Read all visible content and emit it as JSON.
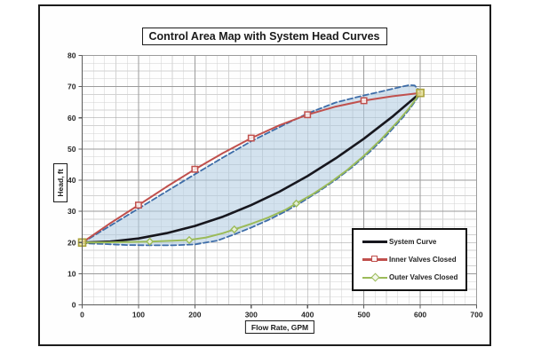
{
  "chart_data": {
    "type": "line",
    "title": "Control Area Map with System Head Curves",
    "xlabel": "Flow Rate, GPM",
    "ylabel": "Head, ft",
    "xlim": [
      0,
      700
    ],
    "ylim": [
      0,
      80
    ],
    "x_major": 100,
    "x_minor": 20,
    "y_major": 10,
    "y_minor": 2.5,
    "x_tick_labels": [
      "0",
      "100",
      "200",
      "300",
      "400",
      "500",
      "600",
      "700"
    ],
    "y_tick_labels": [
      "0",
      "10",
      "20",
      "30",
      "40",
      "50",
      "60",
      "70",
      "80"
    ],
    "grid": "on",
    "legend_position": "inside-lower-right",
    "colors": {
      "major_grid": "#9b9b9b",
      "minor_grid": "#d2d2d2",
      "axis_line": "#5a5a5a",
      "tick_text": "#262626",
      "control_area_fill": "#aecbe0",
      "control_area_outline": "#3e6da8",
      "endpoint_marker": "#aaa23c"
    },
    "series": [
      {
        "name": "System Curve",
        "color": "#17171e",
        "width": 2.6,
        "marker": "none",
        "points": [
          [
            0,
            20
          ],
          [
            50,
            20.3
          ],
          [
            100,
            21.3
          ],
          [
            150,
            23
          ],
          [
            200,
            25.3
          ],
          [
            250,
            28.3
          ],
          [
            300,
            32
          ],
          [
            350,
            36.3
          ],
          [
            400,
            41.3
          ],
          [
            450,
            47
          ],
          [
            500,
            53.3
          ],
          [
            550,
            60.3
          ],
          [
            600,
            68
          ]
        ]
      },
      {
        "name": "Inner Valves Closed",
        "color": "#c0504d",
        "width": 2,
        "marker": "square",
        "points": [
          [
            0,
            20
          ],
          [
            50,
            26.2
          ],
          [
            100,
            32
          ],
          [
            150,
            37.9
          ],
          [
            200,
            43.5
          ],
          [
            250,
            48.7
          ],
          [
            300,
            53.5
          ],
          [
            350,
            57.6
          ],
          [
            400,
            61
          ],
          [
            450,
            63.6
          ],
          [
            500,
            65.5
          ],
          [
            550,
            66.9
          ],
          [
            600,
            68
          ]
        ],
        "marker_points": [
          [
            100,
            32
          ],
          [
            200,
            43.5
          ],
          [
            300,
            53.5
          ],
          [
            400,
            61
          ],
          [
            500,
            65.5
          ]
        ]
      },
      {
        "name": "Outer Valves Closed",
        "color": "#9bbb59",
        "width": 2,
        "marker": "diamond",
        "points": [
          [
            0,
            20
          ],
          [
            40,
            20.05
          ],
          [
            80,
            20.15
          ],
          [
            120,
            20.3
          ],
          [
            160,
            20.55
          ],
          [
            190,
            20.8
          ],
          [
            220,
            21.6
          ],
          [
            250,
            23
          ],
          [
            270,
            24.2
          ],
          [
            300,
            26
          ],
          [
            330,
            28
          ],
          [
            360,
            30.4
          ],
          [
            380,
            32.5
          ],
          [
            410,
            35.6
          ],
          [
            440,
            39.2
          ],
          [
            470,
            43.2
          ],
          [
            500,
            47.8
          ],
          [
            530,
            53
          ],
          [
            560,
            58.8
          ],
          [
            580,
            63
          ],
          [
            600,
            68
          ]
        ],
        "marker_points": [
          [
            120,
            20.3
          ],
          [
            190,
            20.8
          ],
          [
            270,
            24.2
          ],
          [
            380,
            32.5
          ]
        ]
      }
    ],
    "control_area": {
      "fill_opacity": 0.55,
      "dash": "6 3.2",
      "outline_width": 1.8,
      "upper": [
        [
          0,
          19.9
        ],
        [
          50,
          25.4
        ],
        [
          100,
          30.9
        ],
        [
          150,
          36.4
        ],
        [
          200,
          41.9
        ],
        [
          250,
          47.3
        ],
        [
          300,
          52.5
        ],
        [
          350,
          57
        ],
        [
          400,
          61.4
        ],
        [
          450,
          64.9
        ],
        [
          500,
          67.2
        ],
        [
          530,
          68.4
        ],
        [
          560,
          69.7
        ],
        [
          580,
          70.5
        ],
        [
          590,
          70.4
        ],
        [
          600,
          68.5
        ]
      ],
      "lower": [
        [
          0,
          19.8
        ],
        [
          40,
          19.5
        ],
        [
          80,
          19.2
        ],
        [
          120,
          19.1
        ],
        [
          160,
          19.1
        ],
        [
          200,
          19.4
        ],
        [
          240,
          20.6
        ],
        [
          270,
          22.6
        ],
        [
          300,
          24.8
        ],
        [
          330,
          27.2
        ],
        [
          360,
          29.9
        ],
        [
          390,
          33
        ],
        [
          420,
          36.4
        ],
        [
          450,
          40.1
        ],
        [
          480,
          44.3
        ],
        [
          510,
          49
        ],
        [
          540,
          54.3
        ],
        [
          570,
          60.3
        ],
        [
          585,
          63.8
        ],
        [
          600,
          67.7
        ]
      ]
    },
    "endpoint_markers": [
      [
        0,
        20
      ],
      [
        600,
        68
      ]
    ]
  },
  "legend": {
    "entries": [
      {
        "label": "System Curve"
      },
      {
        "label": "Inner Valves Closed"
      },
      {
        "label": "Outer Valves Closed"
      }
    ]
  }
}
